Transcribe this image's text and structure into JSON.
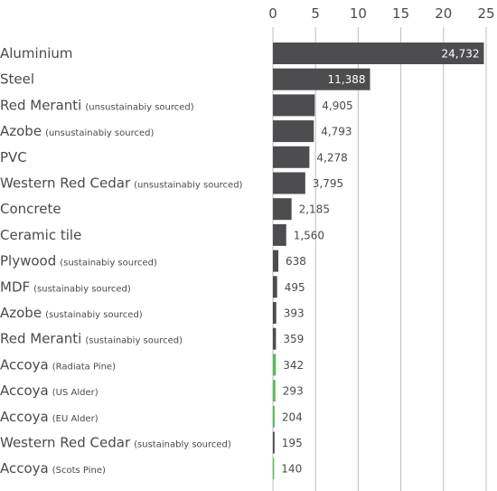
{
  "chart_data": {
    "type": "bar",
    "orientation": "horizontal",
    "title": "",
    "xlabel": "",
    "ylabel": "",
    "xlim": [
      0,
      25
    ],
    "xticks": [
      0,
      5,
      10,
      15,
      20,
      25
    ],
    "grid": true,
    "legend": "none",
    "colors": {
      "standard": "#4d4d4f",
      "accoya": "#5cb85c",
      "grid": "#bdbdbd",
      "value_inside": "#ffffff",
      "value_outside": "#4a4a4a"
    },
    "items": [
      {
        "name": "Aluminium",
        "note": "",
        "label": "24,732",
        "value": 24.732,
        "group": "standard"
      },
      {
        "name": "Steel",
        "note": "",
        "label": "11,388",
        "value": 11.388,
        "group": "standard"
      },
      {
        "name": "Red Meranti",
        "note": "(unsustainabiy sourced)",
        "label": "4,905",
        "value": 4.905,
        "group": "standard"
      },
      {
        "name": "Azobe",
        "note": "(unsustainabiy sourced)",
        "label": "4,793",
        "value": 4.793,
        "group": "standard"
      },
      {
        "name": "PVC",
        "note": "",
        "label": "4,278",
        "value": 4.278,
        "group": "standard"
      },
      {
        "name": "Western Red Cedar",
        "note": "(unsustainabiy sourced)",
        "label": "3,795",
        "value": 3.795,
        "group": "standard"
      },
      {
        "name": "Concrete",
        "note": "",
        "label": "2,185",
        "value": 2.185,
        "group": "standard"
      },
      {
        "name": "Ceramic tile",
        "note": "",
        "label": "1,560",
        "value": 1.56,
        "group": "standard"
      },
      {
        "name": "Plywood",
        "note": "(sustainabiy sourced)",
        "label": "638",
        "value": 0.638,
        "group": "standard"
      },
      {
        "name": "MDF",
        "note": "(sustainabiy sourced)",
        "label": "495",
        "value": 0.495,
        "group": "standard"
      },
      {
        "name": "Azobe",
        "note": "(sustainabiy sourced)",
        "label": "393",
        "value": 0.393,
        "group": "standard"
      },
      {
        "name": "Red Meranti",
        "note": "(sustainabiy sourced)",
        "label": "359",
        "value": 0.359,
        "group": "standard"
      },
      {
        "name": "Accoya",
        "note": "(Radiata Pine)",
        "label": "342",
        "value": 0.342,
        "group": "accoya"
      },
      {
        "name": "Accoya",
        "note": "(US Alder)",
        "label": "293",
        "value": 0.293,
        "group": "accoya"
      },
      {
        "name": "Accoya",
        "note": "(EU Alder)",
        "label": "204",
        "value": 0.204,
        "group": "accoya"
      },
      {
        "name": "Western Red Cedar",
        "note": "(sustainably sourced)",
        "label": "195",
        "value": 0.195,
        "group": "standard"
      },
      {
        "name": "Accoya",
        "note": "(Scots Pine)",
        "label": "140",
        "value": 0.14,
        "group": "accoya"
      }
    ]
  }
}
